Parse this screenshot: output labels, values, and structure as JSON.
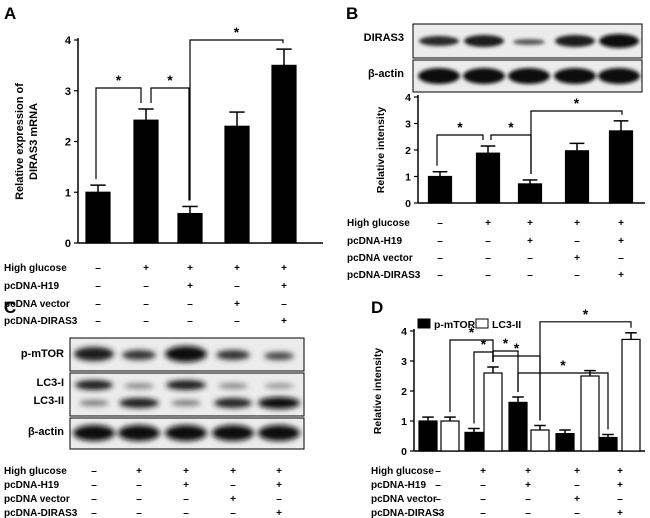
{
  "panels": {
    "a": {
      "letter": "A"
    },
    "b": {
      "letter": "B",
      "blot_labels": [
        "DIRAS3",
        "β-actin"
      ]
    },
    "c": {
      "letter": "C",
      "blot_labels": [
        "p-mTOR",
        "LC3-I",
        "LC3-II",
        "β-actin"
      ]
    },
    "d": {
      "letter": "D"
    }
  },
  "treatment_table": {
    "rows": [
      {
        "label": "High glucose",
        "marks": [
          "–",
          "+",
          "+",
          "+",
          "+"
        ]
      },
      {
        "label": "pcDNA-H19",
        "marks": [
          "–",
          "–",
          "+",
          "–",
          "+"
        ]
      },
      {
        "label": "pcDNA vector",
        "marks": [
          "–",
          "–",
          "–",
          "+",
          "–"
        ]
      },
      {
        "label": "pcDNA-DIRAS3",
        "marks": [
          "–",
          "–",
          "–",
          "–",
          "+"
        ]
      }
    ]
  },
  "colors": {
    "bar_fill": "#000000",
    "bar_open": "#ffffff",
    "axis": "#000000"
  },
  "chart_data": [
    {
      "id": "A",
      "type": "bar",
      "ylabel": "Relative expression of DIRAS3 mRNA",
      "ylim": [
        0,
        4
      ],
      "yticks": [
        0,
        1,
        2,
        3,
        4
      ],
      "series": [
        {
          "values": [
            1.0,
            2.42,
            0.58,
            2.3,
            3.5
          ],
          "errors": [
            0.14,
            0.22,
            0.14,
            0.28,
            0.32
          ]
        }
      ],
      "significance": [
        {
          "from": 0,
          "to": 1,
          "label": "*"
        },
        {
          "from": 1,
          "to": 2,
          "label": "*"
        },
        {
          "from": 2,
          "to": 4,
          "label": "*"
        }
      ]
    },
    {
      "id": "B",
      "type": "bar",
      "ylabel": "Relative intensity",
      "ylim": [
        0,
        4
      ],
      "yticks": [
        0,
        1,
        2,
        3,
        4
      ],
      "series": [
        {
          "values": [
            1.0,
            1.88,
            0.72,
            1.97,
            2.72
          ],
          "errors": [
            0.18,
            0.27,
            0.15,
            0.28,
            0.38
          ]
        }
      ],
      "significance": [
        {
          "from": 0,
          "to": 1,
          "label": "*"
        },
        {
          "from": 1,
          "to": 2,
          "label": "*"
        },
        {
          "from": 2,
          "to": 4,
          "label": "*"
        }
      ]
    },
    {
      "id": "D",
      "type": "bar",
      "ylabel": "Relative intensity",
      "ylim": [
        0,
        4
      ],
      "yticks": [
        0,
        1,
        2,
        3,
        4
      ],
      "legend": "top-left",
      "series": [
        {
          "name": "p-mTOR",
          "style": "filled",
          "values": [
            1.0,
            0.62,
            1.62,
            0.58,
            0.45
          ],
          "errors": [
            0.13,
            0.13,
            0.18,
            0.12,
            0.1
          ]
        },
        {
          "name": "LC3-II",
          "style": "open",
          "values": [
            1.0,
            2.6,
            0.7,
            2.5,
            3.72
          ],
          "errors": [
            0.13,
            0.2,
            0.15,
            0.18,
            0.22
          ]
        }
      ],
      "significance": [
        {
          "from": [
            0,
            1
          ],
          "to": [
            1,
            1
          ],
          "label": "*"
        },
        {
          "from": [
            1,
            0
          ],
          "to": [
            1,
            1
          ],
          "label": "*"
        },
        {
          "from": [
            1,
            1
          ],
          "to": [
            2,
            0
          ],
          "label": "*"
        },
        {
          "from": [
            1,
            1
          ],
          "to": [
            2,
            1
          ],
          "label": "*"
        },
        {
          "from": [
            2,
            0
          ],
          "to": [
            4,
            0
          ],
          "label": "*"
        },
        {
          "from": [
            2,
            1
          ],
          "to": [
            4,
            1
          ],
          "label": "*"
        }
      ]
    }
  ]
}
